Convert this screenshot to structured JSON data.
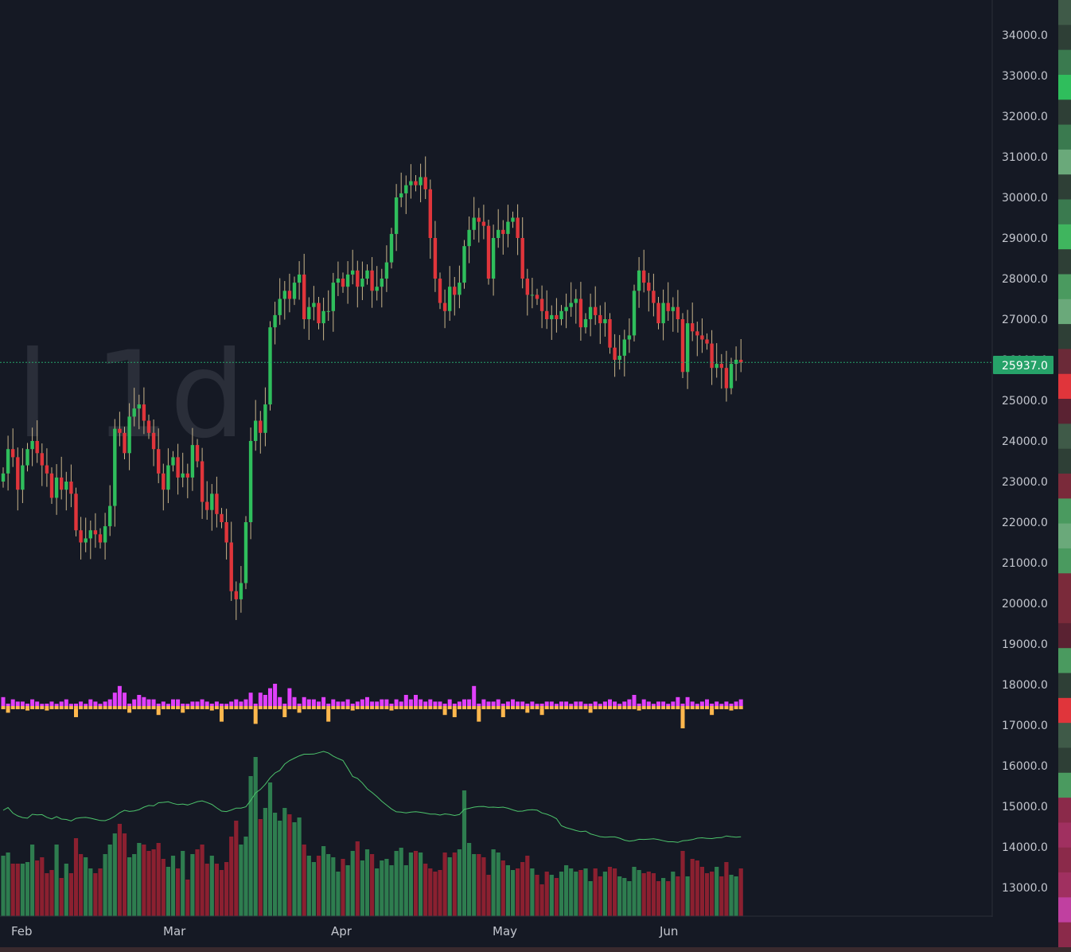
{
  "chart_data": {
    "type": "candlestick",
    "interval_watermark": "1d",
    "watermark_prefix": "l",
    "x_tick_labels": [
      "Feb",
      "Mar",
      "Apr",
      "May",
      "Jun"
    ],
    "y_tick_labels": [
      "13000.0",
      "14000.0",
      "15000.0",
      "16000.0",
      "17000.0",
      "18000.0",
      "19000.0",
      "20000.0",
      "21000.0",
      "22000.0",
      "23000.0",
      "24000.0",
      "25000.0",
      "26000.0",
      "27000.0",
      "28000.0",
      "29000.0",
      "30000.0",
      "31000.0",
      "32000.0",
      "33000.0",
      "34000.0"
    ],
    "last_price_label": "25937.0",
    "last_price": 25937,
    "ylim": [
      12300,
      35000
    ],
    "colors": {
      "background": "#151924",
      "up": "#26a269",
      "down": "#e0353b",
      "up_candle": "#2fbe5c",
      "down_candle": "#e0353b",
      "vol_up": "#2e7d4f",
      "vol_down": "#8b2030",
      "delta_pos": "#e040fb",
      "delta_neg": "#ffb74d",
      "ma_line": "#4cc36b",
      "price_line": "#26a269",
      "axis_text": "#c3c6ce"
    },
    "close": [
      23200,
      23800,
      23600,
      22800,
      23400,
      23800,
      24000,
      23700,
      23400,
      23200,
      22600,
      23100,
      22800,
      23000,
      22700,
      21800,
      21500,
      21600,
      21800,
      21700,
      21500,
      21900,
      22400,
      24300,
      24200,
      23700,
      24600,
      24800,
      24900,
      24500,
      24200,
      23800,
      23200,
      22800,
      23400,
      23600,
      23100,
      23200,
      23100,
      23900,
      23500,
      22500,
      22300,
      22700,
      22200,
      22000,
      21500,
      20300,
      20100,
      20500,
      22000,
      24000,
      24500,
      24200,
      24900,
      26800,
      27100,
      27500,
      27700,
      27500,
      27900,
      28100,
      27000,
      27300,
      27400,
      26900,
      27200,
      27200,
      27900,
      28000,
      27800,
      28100,
      28200,
      27800,
      28000,
      28200,
      27700,
      27800,
      28000,
      28400,
      29100,
      30000,
      30100,
      30300,
      30400,
      30300,
      30500,
      30200,
      29000,
      28000,
      27400,
      27200,
      27800,
      27600,
      27900,
      28800,
      29200,
      29500,
      29400,
      29300,
      28000,
      29000,
      29200,
      29100,
      29400,
      29500,
      29000,
      28000,
      27600,
      27600,
      27500,
      27200,
      27000,
      27100,
      27000,
      27200,
      27300,
      27400,
      27500,
      26800,
      27000,
      27300,
      27100,
      26900,
      27000,
      26300,
      26000,
      26100,
      26500,
      26600,
      27700,
      28200,
      27900,
      27700,
      27400,
      26900,
      27400,
      27200,
      27300,
      27000,
      25700,
      26900,
      26700,
      26600,
      26500,
      26400,
      25800,
      25900,
      25800,
      25300,
      25900,
      26000,
      25937
    ],
    "volume_rel": [
      0.38,
      0.4,
      0.33,
      0.33,
      0.33,
      0.34,
      0.45,
      0.35,
      0.37,
      0.27,
      0.29,
      0.45,
      0.24,
      0.33,
      0.27,
      0.49,
      0.39,
      0.37,
      0.3,
      0.27,
      0.3,
      0.39,
      0.45,
      0.52,
      0.58,
      0.52,
      0.37,
      0.39,
      0.46,
      0.45,
      0.41,
      0.42,
      0.46,
      0.36,
      0.31,
      0.38,
      0.3,
      0.41,
      0.23,
      0.39,
      0.42,
      0.45,
      0.33,
      0.38,
      0.33,
      0.29,
      0.34,
      0.5,
      0.6,
      0.45,
      0.5,
      0.88,
      1.0,
      0.61,
      0.68,
      0.84,
      0.65,
      0.6,
      0.68,
      0.64,
      0.59,
      0.62,
      0.45,
      0.38,
      0.34,
      0.38,
      0.44,
      0.39,
      0.37,
      0.28,
      0.36,
      0.32,
      0.41,
      0.47,
      0.35,
      0.42,
      0.39,
      0.3,
      0.35,
      0.36,
      0.32,
      0.41,
      0.43,
      0.32,
      0.4,
      0.41,
      0.4,
      0.33,
      0.3,
      0.28,
      0.29,
      0.4,
      0.37,
      0.4,
      0.42,
      0.79,
      0.46,
      0.39,
      0.39,
      0.37,
      0.26,
      0.42,
      0.4,
      0.35,
      0.32,
      0.29,
      0.3,
      0.34,
      0.38,
      0.3,
      0.26,
      0.2,
      0.28,
      0.26,
      0.24,
      0.28,
      0.32,
      0.3,
      0.28,
      0.29,
      0.3,
      0.22,
      0.3,
      0.25,
      0.28,
      0.31,
      0.3,
      0.25,
      0.24,
      0.22,
      0.31,
      0.29,
      0.27,
      0.28,
      0.27,
      0.22,
      0.24,
      0.22,
      0.28,
      0.25,
      0.41,
      0.25,
      0.36,
      0.35,
      0.31,
      0.27,
      0.28,
      0.31,
      0.25,
      0.34,
      0.26,
      0.25,
      0.3
    ],
    "delta_rel": [
      0.4,
      -0.3,
      0.3,
      0.2,
      0.2,
      -0.2,
      0.3,
      0.2,
      0.1,
      -0.2,
      0.2,
      0.1,
      0.2,
      0.3,
      0.1,
      -0.5,
      0.2,
      0.1,
      0.3,
      0.2,
      0.1,
      0.2,
      0.3,
      0.6,
      0.9,
      0.6,
      -0.3,
      0.3,
      0.5,
      0.4,
      0.3,
      0.3,
      -0.4,
      0.2,
      0.1,
      0.3,
      0.3,
      -0.3,
      0.1,
      0.2,
      0.2,
      0.3,
      0.2,
      -0.2,
      0.2,
      -0.7,
      0.1,
      0.2,
      0.3,
      0.2,
      0.3,
      0.6,
      -0.8,
      0.6,
      0.5,
      0.8,
      1.0,
      0.4,
      -0.5,
      0.8,
      0.4,
      -0.3,
      0.4,
      0.3,
      0.3,
      0.2,
      0.4,
      -0.7,
      0.3,
      0.2,
      0.2,
      0.3,
      -0.2,
      0.2,
      0.3,
      0.4,
      0.2,
      0.2,
      0.3,
      0.3,
      -0.2,
      0.3,
      0.2,
      0.5,
      0.3,
      0.5,
      0.3,
      0.2,
      0.3,
      0.2,
      0.2,
      -0.4,
      0.3,
      -0.5,
      0.2,
      0.3,
      0.3,
      0.9,
      -0.7,
      0.3,
      0.2,
      0.2,
      0.3,
      -0.5,
      0.2,
      0.3,
      0.2,
      0.2,
      -0.3,
      0.2,
      0.1,
      -0.4,
      0.2,
      0.2,
      0.1,
      0.2,
      0.2,
      0.1,
      0.2,
      0.2,
      0.1,
      -0.3,
      0.2,
      0.1,
      0.2,
      0.3,
      0.2,
      0.1,
      0.2,
      0.3,
      0.5,
      -0.2,
      0.3,
      0.2,
      0.1,
      0.2,
      0.2,
      0.1,
      0.2,
      0.4,
      -1.0,
      0.4,
      0.2,
      0.1,
      0.2,
      0.3,
      -0.4,
      0.2,
      0.1,
      0.2,
      -0.2,
      0.2,
      0.3,
      0.2,
      0.1
    ],
    "side_heat": [
      "#3f5a48",
      "#2e3f36",
      "#3a7a4f",
      "#2fbe5c",
      "#2e3f36",
      "#3a7a4f",
      "#6aa97a",
      "#2e3f36",
      "#3a7a4f",
      "#3fb55e",
      "#2e3f36",
      "#4a9a5f",
      "#6aa97a",
      "#2e3f36",
      "#6b2a38",
      "#e0353b",
      "#5a2232",
      "#3f5a48",
      "#2e3f36",
      "#7a2a3a",
      "#4a9a5f",
      "#6aa97a",
      "#4a9a5f",
      "#7a2a3a",
      "#7a2a3a",
      "#5a2232",
      "#4a9a5f",
      "#2e3f36",
      "#e0353b",
      "#3f5a48",
      "#2e3f36",
      "#4a9a5f",
      "#8b2a4a",
      "#a03060",
      "#8b2a4a",
      "#a03060",
      "#c040a0",
      "#8b2a4a"
    ]
  }
}
